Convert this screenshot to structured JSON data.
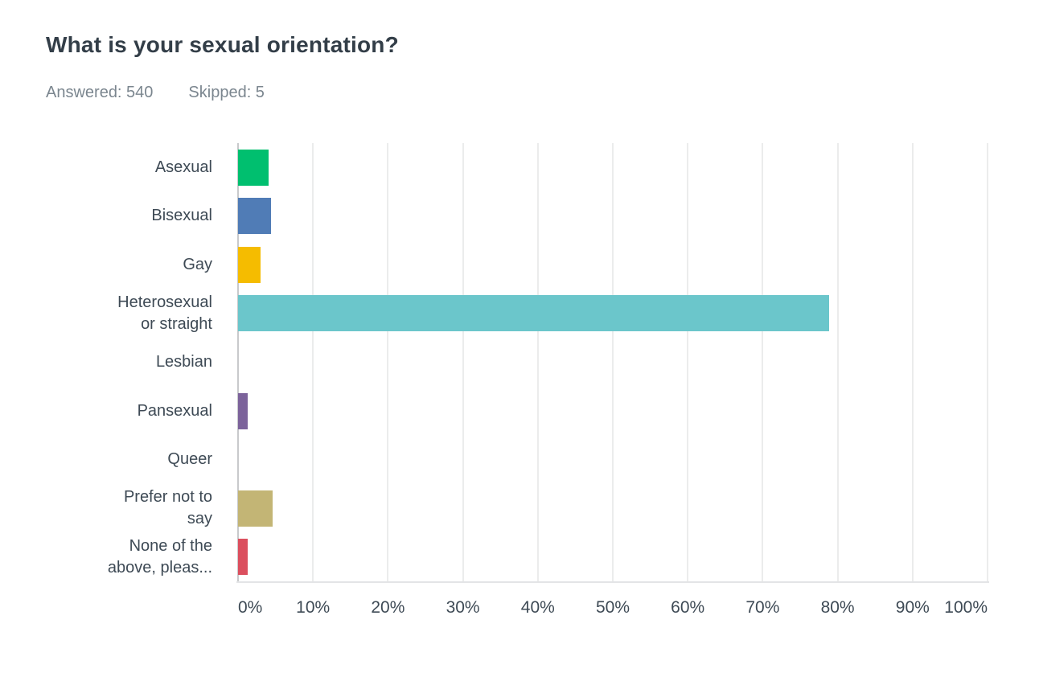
{
  "header": {
    "title": "What is your sexual orientation?",
    "answered": "Answered: 540",
    "skipped": "Skipped: 5"
  },
  "chart_data": {
    "type": "bar",
    "orientation": "horizontal",
    "title": "What is your sexual orientation?",
    "answered_count": 540,
    "skipped_count": 5,
    "categories": [
      "Asexual",
      "Bisexual",
      "Gay",
      "Heterosexual\nor straight",
      "Lesbian",
      "Pansexual",
      "Queer",
      "Prefer not to\nsay",
      "None of the\nabove, pleas..."
    ],
    "values": [
      4.07,
      4.44,
      2.96,
      78.89,
      0,
      1.3,
      0,
      4.63,
      1.3
    ],
    "colors": [
      "#00bf6f",
      "#507cb6",
      "#f5bc00",
      "#6bc6cb",
      "#cccccc",
      "#7c639b",
      "#cccccc",
      "#c3b575",
      "#db4f5e"
    ],
    "x_tick_labels": [
      "0%",
      "10%",
      "20%",
      "30%",
      "40%",
      "50%",
      "60%",
      "70%",
      "80%",
      "90%",
      "100%"
    ],
    "xlim": [
      0,
      100
    ],
    "grid": "vertical gridlines every 10%",
    "legend": "none",
    "value_labels_on_bars": false
  }
}
